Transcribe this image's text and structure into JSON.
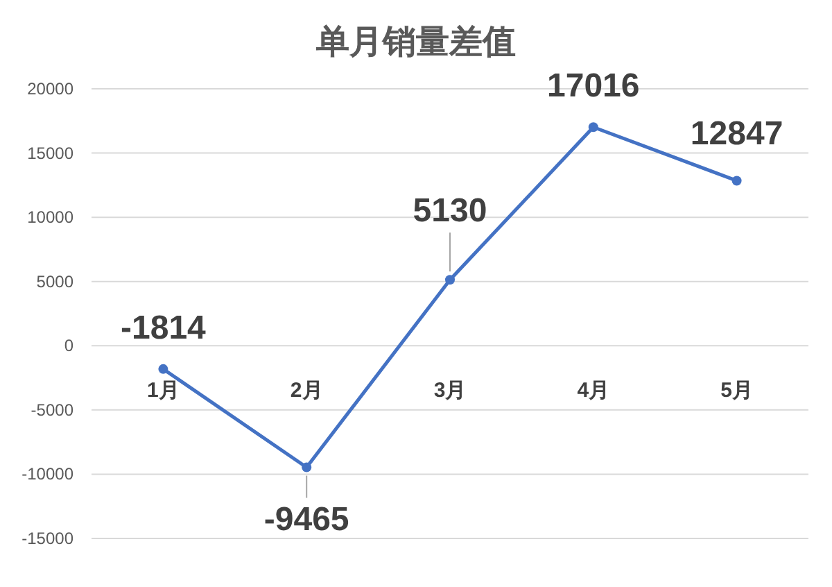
{
  "chart_data": {
    "type": "line",
    "title": "单月销量差值",
    "categories": [
      "1月",
      "2月",
      "3月",
      "4月",
      "5月"
    ],
    "series": [
      {
        "color": "#4472c4",
        "values": [
          -1814,
          -9465,
          5130,
          17016,
          12847
        ]
      }
    ],
    "ylim": [
      -15000,
      20000
    ],
    "yticks": [
      -15000,
      -10000,
      -5000,
      0,
      5000,
      10000,
      15000,
      20000
    ],
    "grid": "y",
    "marker": "circle",
    "line_style": "solid",
    "data_labels": true
  }
}
